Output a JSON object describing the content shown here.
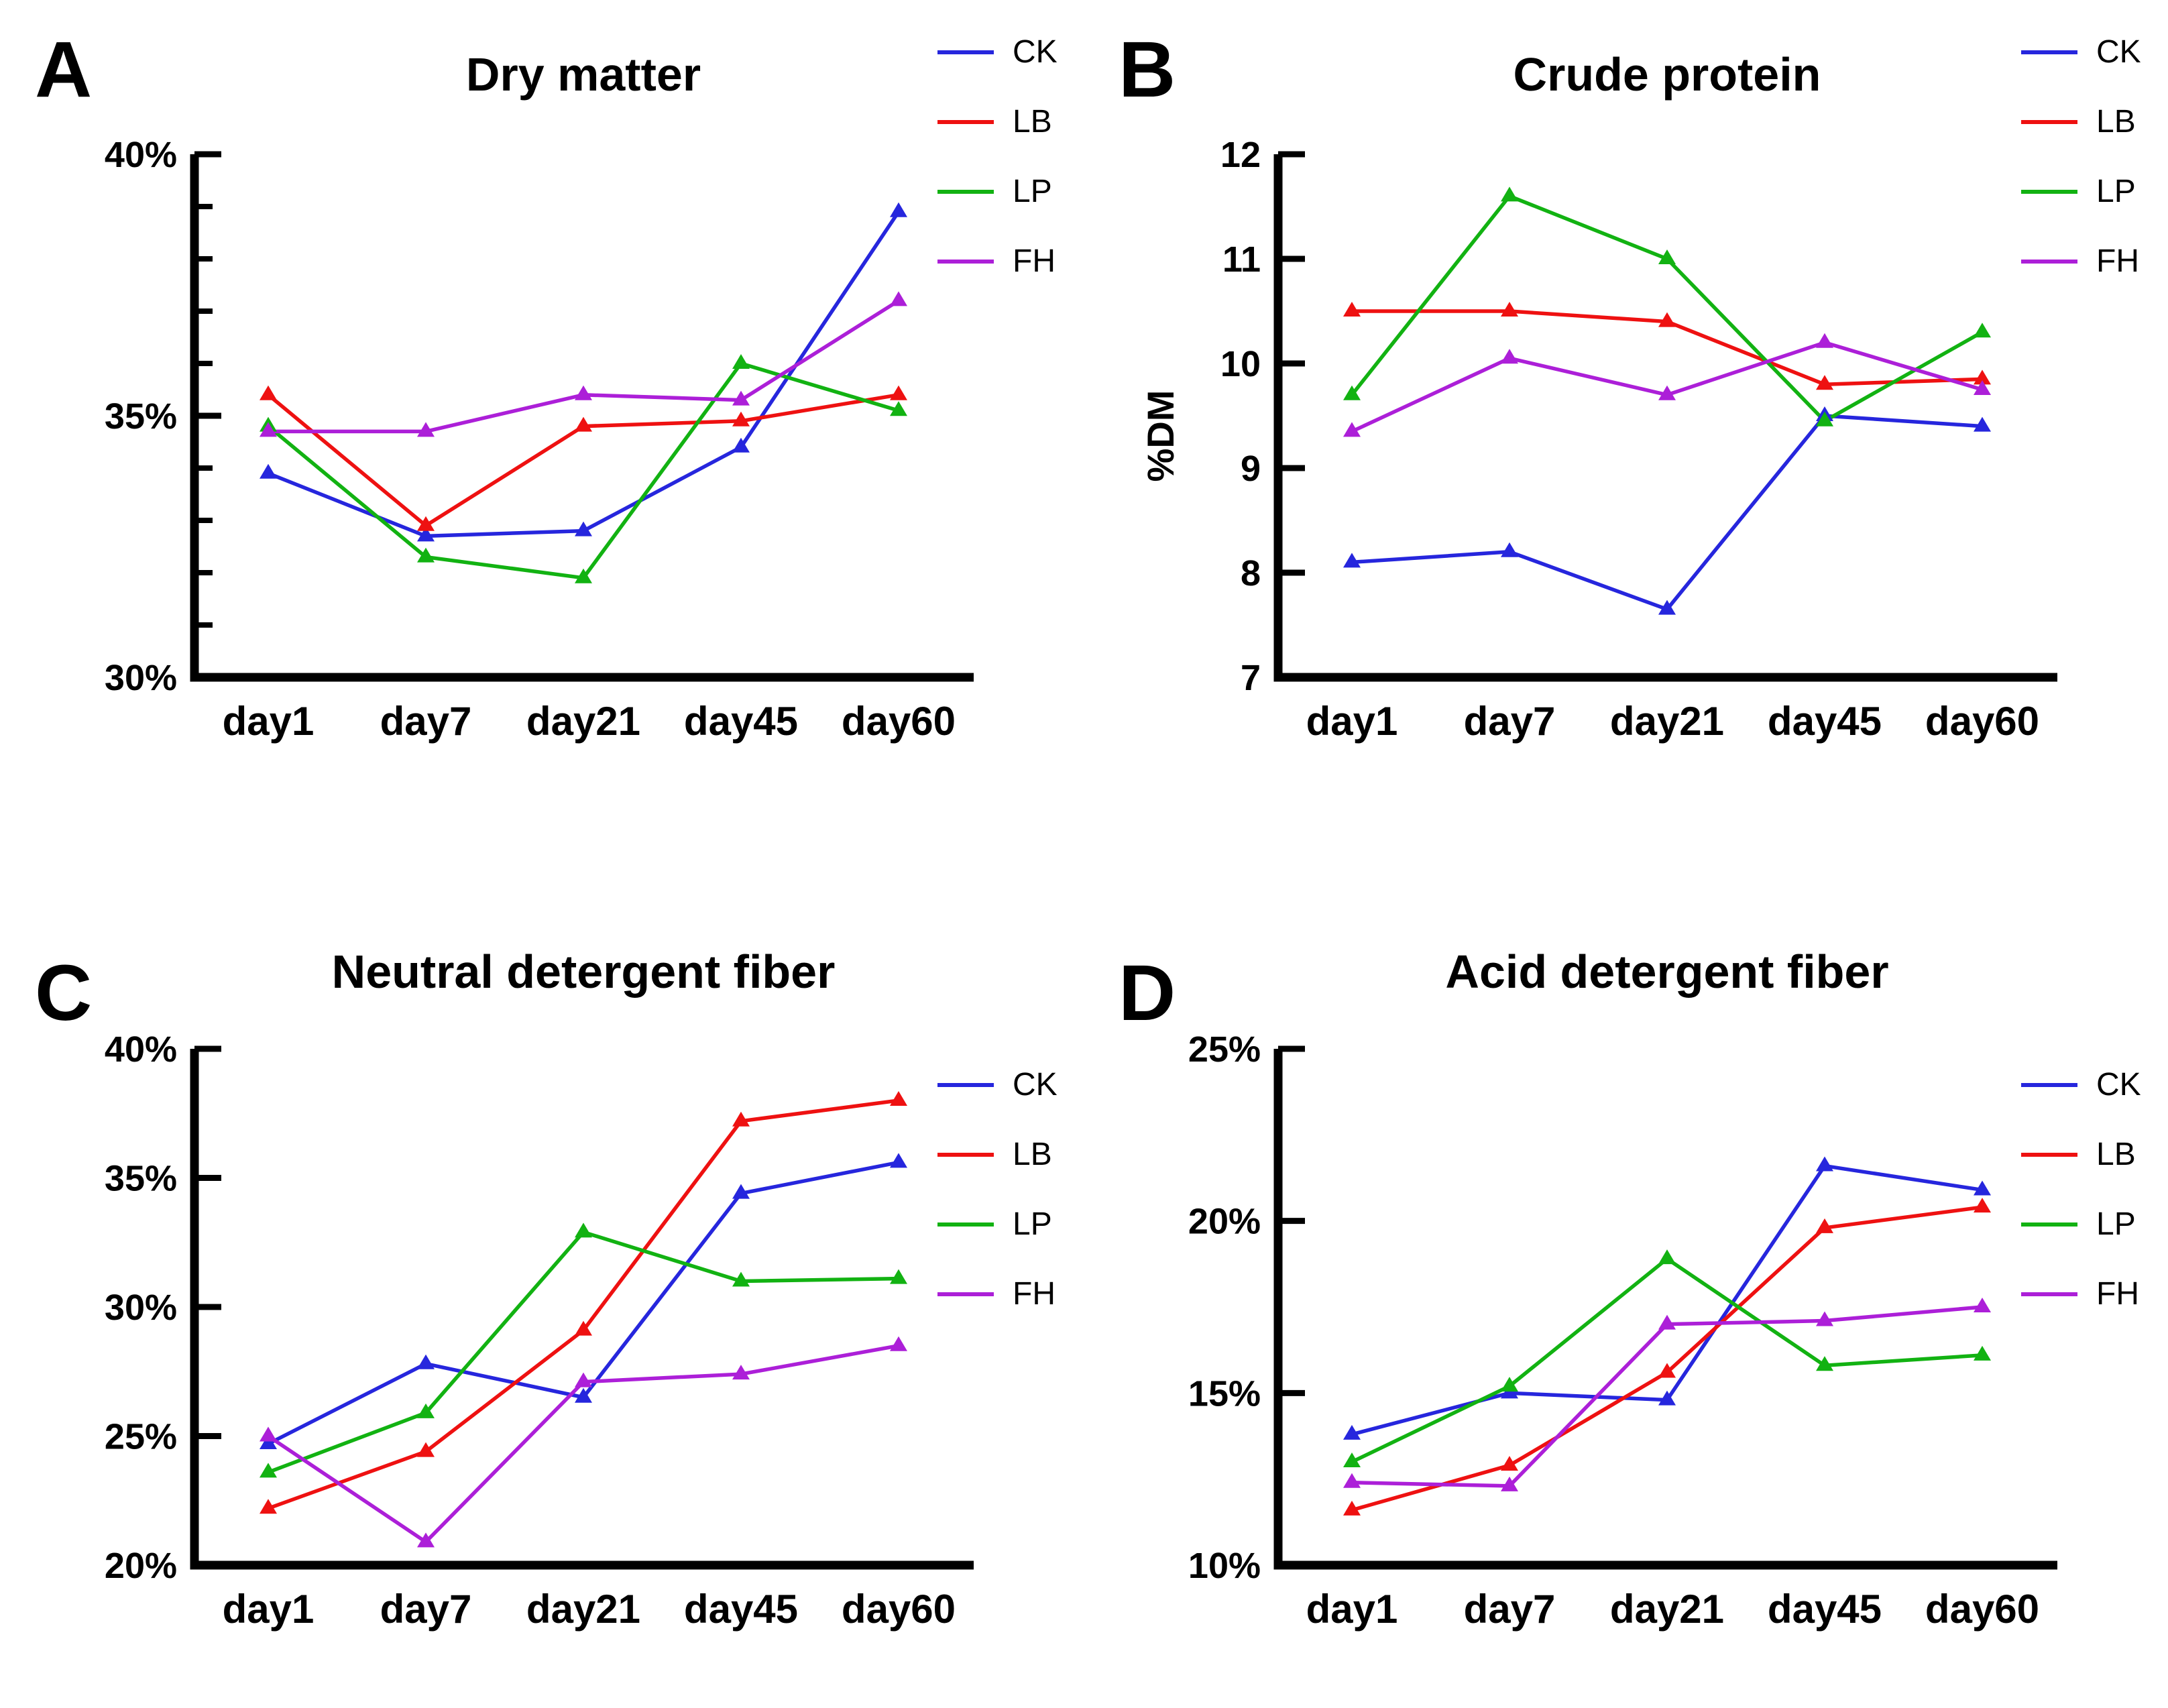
{
  "figure": {
    "background": "#ffffff",
    "axis_color": "#000000",
    "series_palette": {
      "CK": "#2626dd",
      "LB": "#ee1111",
      "LP": "#12b212",
      "FH": "#ac1fd8"
    }
  },
  "chart_data": [
    {
      "letter": "A",
      "type": "line",
      "title": "Dry matter",
      "categories": [
        "day1",
        "day7",
        "day21",
        "day45",
        "day60"
      ],
      "ylabel": "",
      "ylim": [
        30,
        40
      ],
      "yticks": [
        {
          "v": 30,
          "label": "30%"
        },
        {
          "v": 35,
          "label": "35%"
        },
        {
          "v": 40,
          "label": "40%"
        }
      ],
      "minor_yticks": [
        31,
        32,
        33,
        34,
        36,
        37,
        38,
        39
      ],
      "grid": false,
      "legend_position": "right-top",
      "marker": "triangle",
      "series": [
        {
          "name": "CK",
          "color": "#2626dd",
          "values": [
            33.9,
            32.7,
            32.8,
            34.4,
            38.9
          ]
        },
        {
          "name": "LB",
          "color": "#ee1111",
          "values": [
            35.4,
            32.9,
            34.8,
            34.9,
            35.4
          ]
        },
        {
          "name": "LP",
          "color": "#12b212",
          "values": [
            34.8,
            32.3,
            31.9,
            36.0,
            35.1
          ]
        },
        {
          "name": "FH",
          "color": "#ac1fd8",
          "values": [
            34.7,
            34.7,
            35.4,
            35.3,
            37.2
          ]
        }
      ]
    },
    {
      "letter": "B",
      "type": "line",
      "title": "Crude protein",
      "categories": [
        "day1",
        "day7",
        "day21",
        "day45",
        "day60"
      ],
      "ylabel": "%DM",
      "ylim": [
        7,
        12
      ],
      "yticks": [
        {
          "v": 7,
          "label": "7"
        },
        {
          "v": 8,
          "label": "8"
        },
        {
          "v": 9,
          "label": "9"
        },
        {
          "v": 10,
          "label": "10"
        },
        {
          "v": 11,
          "label": "11"
        },
        {
          "v": 12,
          "label": "12"
        }
      ],
      "minor_yticks": [],
      "grid": false,
      "legend_position": "right-top",
      "marker": "triangle",
      "series": [
        {
          "name": "CK",
          "color": "#2626dd",
          "values": [
            8.1,
            8.2,
            7.65,
            9.5,
            9.4
          ]
        },
        {
          "name": "LB",
          "color": "#ee1111",
          "values": [
            10.5,
            10.5,
            10.4,
            9.8,
            9.85
          ]
        },
        {
          "name": "LP",
          "color": "#12b212",
          "values": [
            9.7,
            11.6,
            11.0,
            9.45,
            10.3
          ]
        },
        {
          "name": "FH",
          "color": "#ac1fd8",
          "values": [
            9.35,
            10.05,
            9.7,
            10.2,
            9.75
          ]
        }
      ]
    },
    {
      "letter": "C",
      "type": "line",
      "title": "Neutral detergent fiber",
      "categories": [
        "day1",
        "day7",
        "day21",
        "day45",
        "day60"
      ],
      "ylabel": "",
      "ylim": [
        20,
        40
      ],
      "yticks": [
        {
          "v": 20,
          "label": "20%"
        },
        {
          "v": 25,
          "label": "25%"
        },
        {
          "v": 30,
          "label": "30%"
        },
        {
          "v": 35,
          "label": "35%"
        },
        {
          "v": 40,
          "label": "40%"
        }
      ],
      "minor_yticks": [],
      "grid": false,
      "legend_position": "right-top",
      "marker": "triangle",
      "series": [
        {
          "name": "CK",
          "color": "#2626dd",
          "values": [
            24.7,
            27.8,
            26.5,
            34.4,
            35.6
          ]
        },
        {
          "name": "LB",
          "color": "#ee1111",
          "values": [
            22.2,
            24.4,
            29.1,
            37.2,
            38.0
          ]
        },
        {
          "name": "LP",
          "color": "#12b212",
          "values": [
            23.6,
            25.9,
            32.9,
            31.0,
            31.1
          ]
        },
        {
          "name": "FH",
          "color": "#ac1fd8",
          "values": [
            25.0,
            20.9,
            27.1,
            27.4,
            28.5
          ]
        }
      ]
    },
    {
      "letter": "D",
      "type": "line",
      "title": "Acid detergent fiber",
      "categories": [
        "day1",
        "day7",
        "day21",
        "day45",
        "day60"
      ],
      "ylabel": "",
      "ylim": [
        10,
        25
      ],
      "yticks": [
        {
          "v": 10,
          "label": "10%"
        },
        {
          "v": 15,
          "label": "15%"
        },
        {
          "v": 20,
          "label": "20%"
        },
        {
          "v": 25,
          "label": "25%"
        }
      ],
      "minor_yticks": [],
      "grid": false,
      "legend_position": "right-top",
      "marker": "triangle",
      "series": [
        {
          "name": "CK",
          "color": "#2626dd",
          "values": [
            13.8,
            15.0,
            14.8,
            21.6,
            20.9
          ]
        },
        {
          "name": "LB",
          "color": "#ee1111",
          "values": [
            11.6,
            12.9,
            15.6,
            19.8,
            20.4
          ]
        },
        {
          "name": "LP",
          "color": "#12b212",
          "values": [
            13.0,
            15.2,
            18.9,
            15.8,
            16.1
          ]
        },
        {
          "name": "FH",
          "color": "#ac1fd8",
          "values": [
            12.4,
            12.3,
            17.0,
            17.1,
            17.5
          ]
        }
      ]
    }
  ]
}
